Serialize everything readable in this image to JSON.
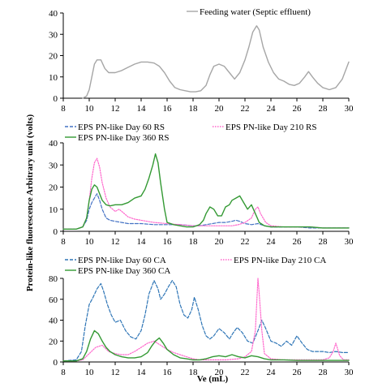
{
  "figure": {
    "ylabel": "Protein-like fluorescence Arbitrary unit (volts)",
    "xlabel": "Ve (mL)"
  },
  "chart_data": [
    {
      "type": "line",
      "id": "panel-feeding",
      "xlim": [
        8,
        30
      ],
      "ylim": [
        0,
        40
      ],
      "xticks": [
        "8",
        "10",
        "12",
        "14",
        "16",
        "18",
        "20",
        "22",
        "24",
        "26",
        "28",
        "30"
      ],
      "yticks": [
        "0",
        "10",
        "20",
        "30",
        "40"
      ],
      "grid": false,
      "legend": "top-right",
      "series": [
        {
          "name": "Feeding water (Septic effluent)",
          "color": "#a6a6a6",
          "dash": "solid",
          "x": [
            9.5,
            9.8,
            10.0,
            10.2,
            10.4,
            10.6,
            10.9,
            11.2,
            11.5,
            12.0,
            12.5,
            13.0,
            13.5,
            14.0,
            14.5,
            15.0,
            15.4,
            15.8,
            16.2,
            16.6,
            17.0,
            17.4,
            17.8,
            18.2,
            18.6,
            19.0,
            19.3,
            19.6,
            20.0,
            20.4,
            20.8,
            21.2,
            21.6,
            22.0,
            22.3,
            22.6,
            22.9,
            23.1,
            23.4,
            23.8,
            24.2,
            24.6,
            25.0,
            25.4,
            25.8,
            26.2,
            26.6,
            26.9,
            27.2,
            27.6,
            28.0,
            28.5,
            29.0,
            29.5,
            30.0
          ],
          "y": [
            0,
            1,
            4,
            10,
            16,
            18,
            18,
            14,
            12,
            12,
            13,
            14.5,
            16,
            17,
            17,
            16.5,
            15,
            12,
            8,
            5,
            4,
            3.5,
            3,
            3,
            3.5,
            6,
            11,
            15,
            16,
            15,
            12,
            9,
            12,
            18,
            24,
            31,
            34,
            32,
            24,
            17,
            12,
            9,
            8,
            6.5,
            6,
            7,
            10,
            12.5,
            10,
            7,
            5,
            4,
            5,
            9,
            17
          ]
        }
      ]
    },
    {
      "type": "line",
      "id": "panel-rs",
      "xlim": [
        8,
        30
      ],
      "ylim": [
        0,
        40
      ],
      "xticks": [
        "8",
        "10",
        "12",
        "14",
        "16",
        "18",
        "20",
        "22",
        "24",
        "26",
        "28",
        "30"
      ],
      "yticks": [
        "0",
        "10",
        "20",
        "30",
        "40"
      ],
      "grid": false,
      "legend": "top",
      "series": [
        {
          "name": "EPS PN-like Day 60 RS",
          "color": "#4472c4",
          "dash": "dashed",
          "x": [
            8.0,
            9.0,
            9.5,
            9.8,
            10.0,
            10.2,
            10.4,
            10.6,
            10.8,
            11.0,
            11.3,
            11.6,
            12.0,
            12.5,
            13.0,
            14.0,
            15.0,
            16.0,
            17.0,
            18.0,
            18.5,
            19.0,
            19.5,
            20.0,
            20.5,
            21.0,
            21.3,
            21.6,
            22.0,
            22.5,
            23.0,
            23.5,
            24.0,
            25.0,
            26.0,
            27.0,
            28.0,
            29.0,
            30.0
          ],
          "y": [
            1,
            1,
            2,
            5,
            10,
            13,
            15,
            17,
            14,
            10,
            6,
            5,
            4.5,
            4,
            3.5,
            3.5,
            3,
            3,
            3,
            2.5,
            2.5,
            3,
            3.5,
            4,
            4,
            4.5,
            5,
            4.5,
            3.5,
            3,
            3.5,
            2.5,
            2,
            2,
            2,
            1.5,
            1.5,
            1.5,
            1.5
          ]
        },
        {
          "name": "EPS PN-like Day 210 RS",
          "color": "#ff66cc",
          "dash": "dotted",
          "x": [
            8.0,
            9.0,
            9.5,
            9.8,
            10.0,
            10.2,
            10.4,
            10.6,
            10.8,
            11.0,
            11.3,
            11.6,
            12.0,
            12.3,
            12.6,
            13.0,
            13.5,
            14.0,
            15.0,
            16.0,
            17.0,
            18.0,
            19.0,
            20.0,
            21.0,
            21.5,
            22.0,
            22.5,
            22.8,
            23.0,
            23.2,
            23.6,
            24.0,
            25.0,
            26.0,
            27.0,
            28.0,
            29.0,
            30.0
          ],
          "y": [
            1,
            1,
            2,
            6,
            14,
            24,
            31,
            33,
            29,
            22,
            15,
            11,
            9,
            10,
            8.5,
            6.5,
            5.5,
            5,
            4,
            3.5,
            3,
            2.5,
            2.5,
            2.5,
            2.5,
            3,
            4,
            6,
            10,
            11,
            8,
            4,
            2.5,
            2,
            2,
            2,
            1.5,
            1.5,
            1.5
          ]
        },
        {
          "name": "EPS PN-like Day 360 RS",
          "color": "#339933",
          "dash": "solid",
          "x": [
            8.0,
            9.0,
            9.5,
            9.8,
            10.0,
            10.2,
            10.4,
            10.6,
            10.8,
            11.0,
            11.3,
            11.6,
            12.0,
            12.5,
            13.0,
            13.5,
            14.0,
            14.3,
            14.6,
            14.9,
            15.1,
            15.3,
            15.5,
            15.8,
            16.0,
            16.5,
            17.0,
            17.5,
            18.0,
            18.5,
            18.8,
            19.0,
            19.3,
            19.6,
            19.9,
            20.2,
            20.5,
            20.8,
            21.0,
            21.3,
            21.6,
            21.9,
            22.2,
            22.5,
            22.8,
            23.1,
            23.5,
            24.0,
            25.0,
            26.0,
            27.0,
            28.0,
            29.0,
            30.0
          ],
          "y": [
            1,
            1,
            2,
            6,
            14,
            19,
            21,
            20,
            17,
            14,
            12,
            11.5,
            12,
            12,
            13,
            15,
            16,
            19,
            24,
            30,
            35,
            31,
            22,
            10,
            4,
            3,
            2.5,
            2,
            2,
            3,
            5,
            8,
            11,
            10,
            7,
            7,
            11,
            12,
            14,
            15,
            16,
            13,
            10,
            12,
            8,
            4,
            2.5,
            2,
            2,
            2,
            2,
            1.5,
            1.5,
            1.5
          ]
        }
      ]
    },
    {
      "type": "line",
      "id": "panel-ca",
      "xlim": [
        8,
        30
      ],
      "ylim": [
        0,
        80
      ],
      "xticks": [
        "8",
        "10",
        "12",
        "14",
        "16",
        "18",
        "20",
        "22",
        "24",
        "26",
        "28",
        "30"
      ],
      "yticks": [
        "0",
        "20",
        "40",
        "60",
        "80"
      ],
      "grid": false,
      "legend": "top",
      "series": [
        {
          "name": "EPS PN-like Day 60 CA",
          "color": "#2e75b6",
          "dash": "dashed",
          "x": [
            8.0,
            9.0,
            9.4,
            9.7,
            10.0,
            10.3,
            10.6,
            10.9,
            11.1,
            11.4,
            11.7,
            12.0,
            12.4,
            12.8,
            13.2,
            13.6,
            14.0,
            14.3,
            14.6,
            15.0,
            15.3,
            15.5,
            15.8,
            16.1,
            16.4,
            16.7,
            17.0,
            17.3,
            17.6,
            17.9,
            18.1,
            18.4,
            18.7,
            19.0,
            19.3,
            19.6,
            20.0,
            20.4,
            20.8,
            21.1,
            21.4,
            21.8,
            22.2,
            22.6,
            23.0,
            23.3,
            23.6,
            24.0,
            24.4,
            24.8,
            25.2,
            25.6,
            26.0,
            26.4,
            26.8,
            27.2,
            27.6,
            28.0,
            28.5,
            29.0,
            29.5,
            30.0
          ],
          "y": [
            1,
            2,
            10,
            35,
            55,
            62,
            70,
            75,
            68,
            55,
            45,
            38,
            40,
            30,
            24,
            22,
            30,
            45,
            65,
            78,
            70,
            60,
            65,
            72,
            78,
            72,
            55,
            45,
            42,
            50,
            62,
            50,
            35,
            25,
            22,
            25,
            32,
            28,
            22,
            28,
            33,
            28,
            20,
            18,
            30,
            40,
            32,
            20,
            18,
            15,
            20,
            16,
            25,
            18,
            12,
            10,
            10,
            10,
            9,
            10,
            9,
            9
          ]
        },
        {
          "name": "EPS PN-like Day 210 CA",
          "color": "#ff66cc",
          "dash": "dotted",
          "x": [
            8.0,
            9.0,
            9.5,
            10.0,
            10.5,
            11.0,
            11.5,
            12.0,
            12.5,
            13.0,
            13.5,
            14.0,
            14.5,
            15.0,
            15.5,
            16.0,
            16.5,
            17.0,
            17.5,
            18.0,
            18.5,
            19.0,
            19.5,
            20.0,
            20.5,
            21.0,
            21.5,
            22.0,
            22.5,
            22.8,
            23.0,
            23.1,
            23.3,
            23.5,
            24.0,
            25.0,
            26.0,
            27.0,
            28.0,
            28.5,
            28.8,
            29.0,
            29.3,
            29.6,
            30.0
          ],
          "y": [
            1,
            1,
            2,
            8,
            14,
            16,
            10,
            8,
            7,
            7,
            10,
            14,
            18,
            20,
            16,
            12,
            9,
            7,
            5,
            3,
            2,
            2,
            2,
            2,
            2,
            2.5,
            3,
            5,
            10,
            30,
            80,
            65,
            30,
            8,
            3,
            2,
            2,
            2,
            2,
            4,
            10,
            18,
            6,
            2,
            2
          ]
        },
        {
          "name": "EPS PN-like Day 360 CA",
          "color": "#339933",
          "dash": "solid",
          "x": [
            8.0,
            9.0,
            9.5,
            9.8,
            10.1,
            10.4,
            10.7,
            11.0,
            11.3,
            11.6,
            12.0,
            12.5,
            13.0,
            13.5,
            14.0,
            14.5,
            14.8,
            15.1,
            15.4,
            15.7,
            16.0,
            16.5,
            17.0,
            17.5,
            18.0,
            18.5,
            19.0,
            19.5,
            20.0,
            20.5,
            21.0,
            21.5,
            22.0,
            22.5,
            23.0,
            23.5,
            24.0,
            25.0,
            26.0,
            27.0,
            28.0,
            29.0,
            30.0
          ],
          "y": [
            1,
            1,
            3,
            10,
            22,
            30,
            27,
            20,
            14,
            10,
            7,
            5,
            4,
            4,
            5,
            9,
            15,
            20,
            23,
            18,
            12,
            7,
            4,
            3,
            2,
            2,
            3,
            5,
            6,
            5,
            7,
            5,
            4,
            6,
            5,
            3,
            2,
            2,
            1.5,
            1.5,
            1.5,
            1.5,
            1.5
          ]
        }
      ]
    }
  ]
}
